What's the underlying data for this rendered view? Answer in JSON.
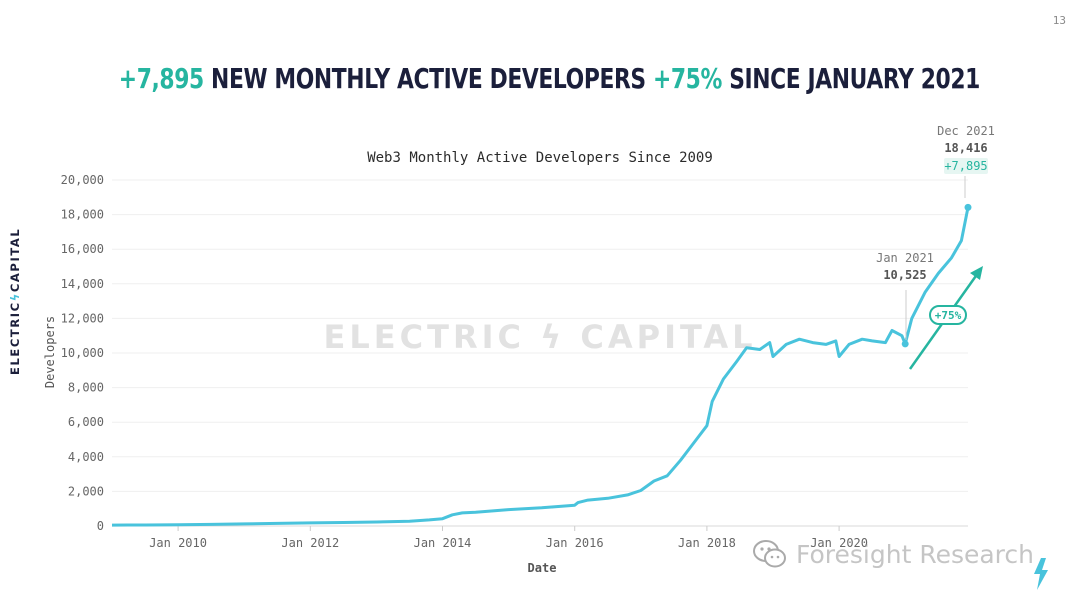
{
  "page_number": "13",
  "headline": {
    "part1": "+7,895",
    "part2": " NEW MONTHLY ACTIVE DEVELOPERS ",
    "part3": "+75%",
    "part4": " SINCE JANUARY 2021"
  },
  "side_logo": {
    "left": "ELECTRIC",
    "bolt": "ϟ",
    "right": "CAPITAL"
  },
  "watermark_text": "ELECTRIC ϟ CAPITAL",
  "foresight_watermark": "Foresight Research",
  "colors": {
    "line": "#49c3dc",
    "accent_green": "#26b5a0",
    "navy": "#1b1f3b",
    "grid": "#eeeeee"
  },
  "chart_data": {
    "type": "line",
    "title": "Web3 Monthly Active Developers Since 2009",
    "xlabel": "Date",
    "ylabel": "Developers",
    "ylim": [
      0,
      20000
    ],
    "yticks": [
      0,
      2000,
      4000,
      6000,
      8000,
      10000,
      12000,
      14000,
      16000,
      18000,
      20000
    ],
    "ytick_labels": [
      "0",
      "2,000",
      "4,000",
      "6,000",
      "8,000",
      "10,000",
      "12,000",
      "14,000",
      "16,000",
      "18,000",
      "20,000"
    ],
    "xlim": [
      2009.0,
      2021.95
    ],
    "xticks": [
      2010,
      2012,
      2014,
      2016,
      2018,
      2020
    ],
    "xtick_labels": [
      "Jan 2010",
      "Jan 2012",
      "Jan 2014",
      "Jan 2016",
      "Jan 2018",
      "Jan 2020"
    ],
    "grid": true,
    "series": [
      {
        "x": [
          2009.0,
          2009.5,
          2010.0,
          2010.5,
          2011.0,
          2011.5,
          2012.0,
          2012.5,
          2013.0,
          2013.5,
          2013.8,
          2014.0,
          2014.15,
          2014.3,
          2014.5,
          2015.0,
          2015.5,
          2016.0,
          2016.05,
          2016.2,
          2016.5,
          2016.8,
          2017.0,
          2017.2,
          2017.4,
          2017.6,
          2017.8,
          2018.0,
          2018.08,
          2018.25,
          2018.45,
          2018.6,
          2018.8,
          2018.95,
          2019.0,
          2019.2,
          2019.4,
          2019.6,
          2019.8,
          2019.95,
          2020.0,
          2020.15,
          2020.35,
          2020.5,
          2020.7,
          2020.8,
          2020.95,
          2021.0,
          2021.1,
          2021.3,
          2021.5,
          2021.7,
          2021.85,
          2021.95
        ],
        "y": [
          50,
          60,
          70,
          90,
          120,
          150,
          180,
          200,
          230,
          280,
          350,
          420,
          650,
          760,
          800,
          950,
          1050,
          1200,
          1350,
          1500,
          1600,
          1800,
          2050,
          2600,
          2900,
          3800,
          4800,
          5800,
          7200,
          8500,
          9500,
          10300,
          10200,
          10600,
          9800,
          10500,
          10800,
          10600,
          10500,
          10700,
          9800,
          10500,
          10800,
          10700,
          10600,
          11300,
          11000,
          10525,
          12000,
          13500,
          14600,
          15500,
          16500,
          18416
        ]
      }
    ],
    "annotations": [
      {
        "label": "Jan 2021",
        "value": "10,525"
      },
      {
        "label": "Dec 2021",
        "value": "18,416",
        "delta": "+7,895"
      },
      {
        "label": "+75%"
      }
    ]
  }
}
